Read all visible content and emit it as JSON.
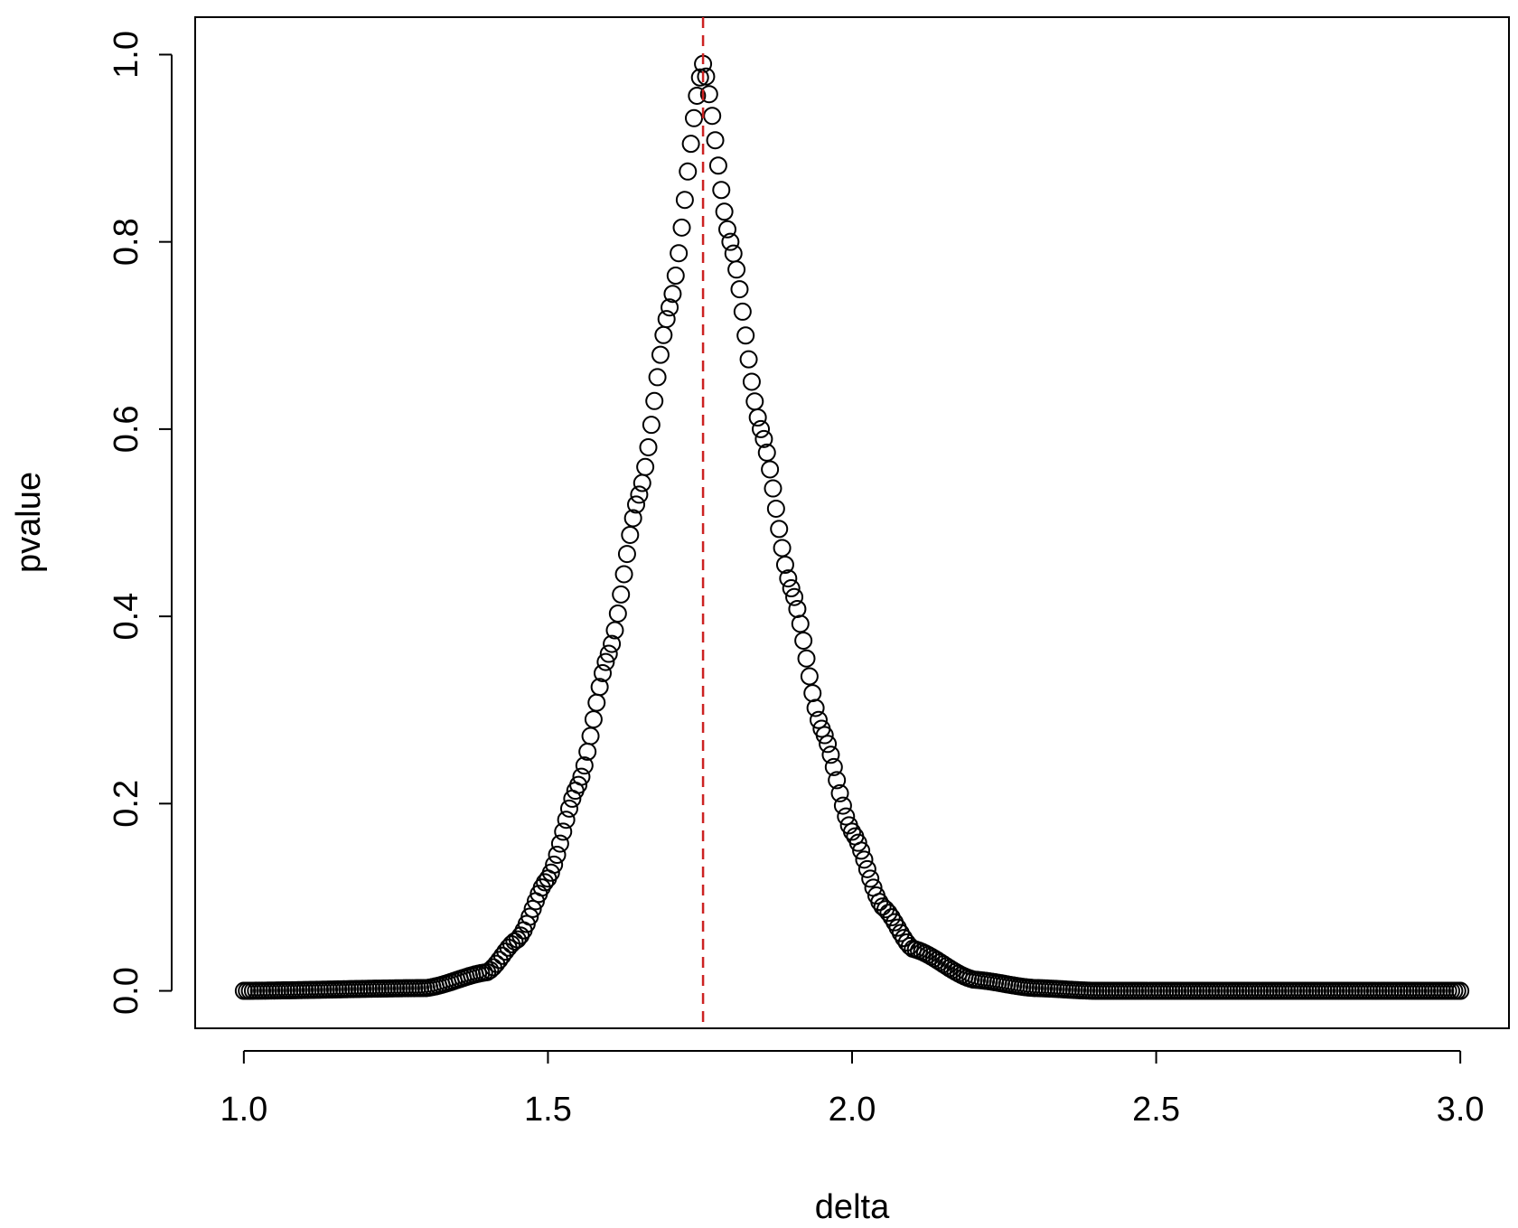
{
  "chart_data": {
    "type": "scatter",
    "title": "",
    "xlabel": "delta",
    "ylabel": "pvalue",
    "xlim": [
      0.92,
      3.08
    ],
    "ylim": [
      -0.04,
      1.04
    ],
    "xticks": [
      "1.0",
      "1.5",
      "2.0",
      "2.5",
      "3.0"
    ],
    "yticks": [
      "0.0",
      "0.2",
      "0.4",
      "0.6",
      "0.8",
      "1.0"
    ],
    "grid": false,
    "legend": "none",
    "marker": "open-circle",
    "point_color": "#000000",
    "series_generation": {
      "x_start": 1.0,
      "x_end": 3.0,
      "x_step": 0.005
    },
    "vline": {
      "x": 1.755,
      "style": "dashed",
      "color": "#cc2222"
    },
    "sample_points": [
      {
        "x": 1.0,
        "y": 0.0
      },
      {
        "x": 1.3,
        "y": 0.003
      },
      {
        "x": 1.4,
        "y": 0.02
      },
      {
        "x": 1.45,
        "y": 0.055
      },
      {
        "x": 1.5,
        "y": 0.12
      },
      {
        "x": 1.55,
        "y": 0.22
      },
      {
        "x": 1.6,
        "y": 0.36
      },
      {
        "x": 1.65,
        "y": 0.53
      },
      {
        "x": 1.7,
        "y": 0.73
      },
      {
        "x": 1.755,
        "y": 0.99
      },
      {
        "x": 1.8,
        "y": 0.8
      },
      {
        "x": 1.85,
        "y": 0.6
      },
      {
        "x": 1.9,
        "y": 0.43
      },
      {
        "x": 1.95,
        "y": 0.28
      },
      {
        "x": 2.0,
        "y": 0.17
      },
      {
        "x": 2.05,
        "y": 0.09
      },
      {
        "x": 2.1,
        "y": 0.045
      },
      {
        "x": 2.2,
        "y": 0.012
      },
      {
        "x": 2.3,
        "y": 0.003
      },
      {
        "x": 2.4,
        "y": 0.0
      },
      {
        "x": 3.0,
        "y": 0.0
      }
    ]
  }
}
